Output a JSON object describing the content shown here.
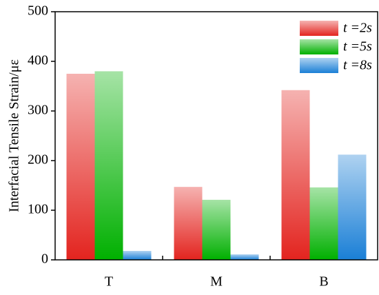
{
  "chart_data": {
    "type": "bar",
    "y_label": "Interfacial Tensile Strain/με",
    "categories": [
      "T",
      "M",
      "B"
    ],
    "series": [
      {
        "name": "t =2s",
        "color": "#e3241f",
        "values": [
          375,
          147,
          342
        ]
      },
      {
        "name": "t =5s",
        "color": "#00b000",
        "values": [
          380,
          121,
          146
        ]
      },
      {
        "name": "t =8s",
        "color": "#1a7fd6",
        "values": [
          18,
          11,
          212
        ]
      }
    ],
    "ylim": [
      0,
      500
    ],
    "yticks": [
      0,
      100,
      200,
      300,
      400,
      500
    ],
    "legend": "upper right"
  }
}
